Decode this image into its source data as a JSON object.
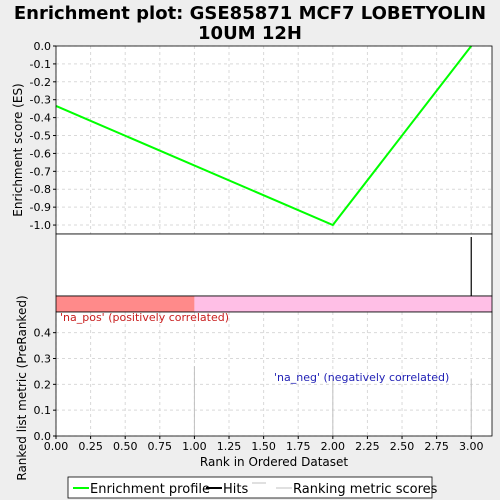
{
  "chart_data": {
    "type": "line",
    "title_line1": "Enrichment plot: GSE85871 MCF7 LOBETYOLIN",
    "title_line2": "10UM 12H",
    "es_panel": {
      "ylabel": "Enrichment score (ES)",
      "ylim": [
        -1.05,
        0.0
      ],
      "yticks": [
        "0.0",
        "-0.1",
        "-0.2",
        "-0.3",
        "-0.4",
        "-0.5",
        "-0.6",
        "-0.7",
        "-0.8",
        "-0.9",
        "-1.0"
      ],
      "ytick_values": [
        0.0,
        -0.1,
        -0.2,
        -0.3,
        -0.4,
        -0.5,
        -0.6,
        -0.7,
        -0.8,
        -0.9,
        -1.0
      ],
      "series": [
        {
          "name": "Enrichment profile",
          "color": "#00ff00",
          "x": [
            0,
            2,
            3
          ],
          "y": [
            -0.335,
            -1.0,
            0.0
          ]
        }
      ],
      "grid": true
    },
    "hits": [
      3
    ],
    "color_bar": {
      "pos_color": "#ff8a8a",
      "neg_color": "#ffbfe6",
      "split_at": 1
    },
    "metric_panel": {
      "ylabel": "Ranked list metric (PreRanked)",
      "ylim": [
        0,
        0.48
      ],
      "yticks": [
        "0.0",
        "0.1",
        "0.2",
        "0.3",
        "0.4"
      ],
      "ytick_values": [
        0.0,
        0.1,
        0.2,
        0.3,
        0.4
      ],
      "bars": [
        {
          "x": 1,
          "value": 0.27
        },
        {
          "x": 2,
          "value": 0.22
        },
        {
          "x": 3,
          "value": 0.22
        }
      ],
      "annotation_pos": "'na_pos' (positively correlated)",
      "annotation_neg": "'na_neg' (negatively correlated)",
      "grid": true
    },
    "xlabel": "Rank in Ordered Dataset",
    "xlim": [
      0,
      3.15
    ],
    "xticks": [
      "0.00",
      "0.25",
      "0.50",
      "0.75",
      "1.00",
      "1.25",
      "1.50",
      "1.75",
      "2.00",
      "2.25",
      "2.50",
      "2.75",
      "3.00"
    ],
    "xtick_values": [
      0.0,
      0.25,
      0.5,
      0.75,
      1.0,
      1.25,
      1.5,
      1.75,
      2.0,
      2.25,
      2.5,
      2.75,
      3.0
    ],
    "legend": {
      "placement": "bottom",
      "items": [
        {
          "label": "Enrichment profile",
          "color": "#00ff00"
        },
        {
          "label": "Hits",
          "color": "#000000"
        },
        {
          "label": "Ranking metric scores",
          "color": "#c0c0c0"
        }
      ]
    }
  }
}
